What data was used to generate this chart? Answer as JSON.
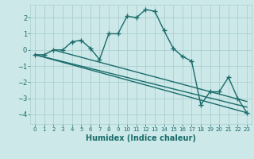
{
  "title": "",
  "xlabel": "Humidex (Indice chaleur)",
  "bg_color": "#cce8e8",
  "grid_color": "#aacfcf",
  "line_color": "#1a6b6b",
  "x_ticks": [
    0,
    1,
    2,
    3,
    4,
    5,
    6,
    7,
    8,
    9,
    10,
    11,
    12,
    13,
    14,
    15,
    16,
    17,
    18,
    19,
    20,
    21,
    22,
    23
  ],
  "y_ticks": [
    -4,
    -3,
    -2,
    -1,
    0,
    1,
    2
  ],
  "xlim": [
    -0.5,
    23.5
  ],
  "ylim": [
    -4.6,
    2.8
  ],
  "series": [
    [
      0,
      -0.3
    ],
    [
      1,
      -0.3
    ],
    [
      2,
      0.0
    ],
    [
      3,
      0.0
    ],
    [
      4,
      0.5
    ],
    [
      5,
      0.6
    ],
    [
      6,
      0.1
    ],
    [
      7,
      -0.6
    ],
    [
      8,
      1.0
    ],
    [
      9,
      1.0
    ],
    [
      10,
      2.1
    ],
    [
      11,
      2.0
    ],
    [
      12,
      2.5
    ],
    [
      13,
      2.4
    ],
    [
      14,
      1.2
    ],
    [
      15,
      0.1
    ],
    [
      16,
      -0.4
    ],
    [
      17,
      -0.7
    ],
    [
      18,
      -3.4
    ],
    [
      19,
      -2.6
    ],
    [
      20,
      -2.6
    ],
    [
      21,
      -1.7
    ],
    [
      22,
      -3.0
    ],
    [
      23,
      -3.9
    ]
  ],
  "line2": [
    [
      0,
      -0.3
    ],
    [
      23,
      -3.9
    ]
  ],
  "line3": [
    [
      0,
      -0.3
    ],
    [
      23,
      -3.55
    ]
  ],
  "line4": [
    [
      2,
      0.0
    ],
    [
      23,
      -3.2
    ]
  ]
}
